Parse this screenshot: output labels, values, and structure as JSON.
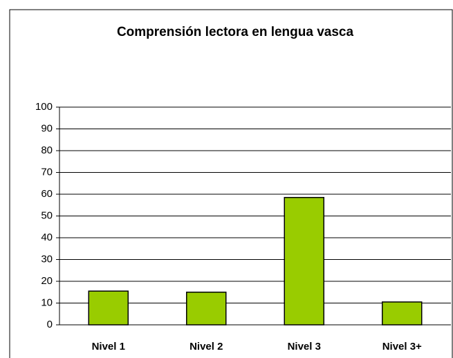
{
  "chart_data": {
    "type": "bar",
    "title": "Comprensión lectora en lengua vasca",
    "categories": [
      "Nivel 1",
      "Nivel 2",
      "Nivel 3",
      "Nivel 3+"
    ],
    "values": [
      15.5,
      15,
      58.5,
      10.5
    ],
    "color": "#99cc00",
    "ylim": [
      0,
      100
    ],
    "yticks": [
      0,
      10,
      20,
      30,
      40,
      50,
      60,
      70,
      80,
      90,
      100
    ],
    "grid": true
  }
}
